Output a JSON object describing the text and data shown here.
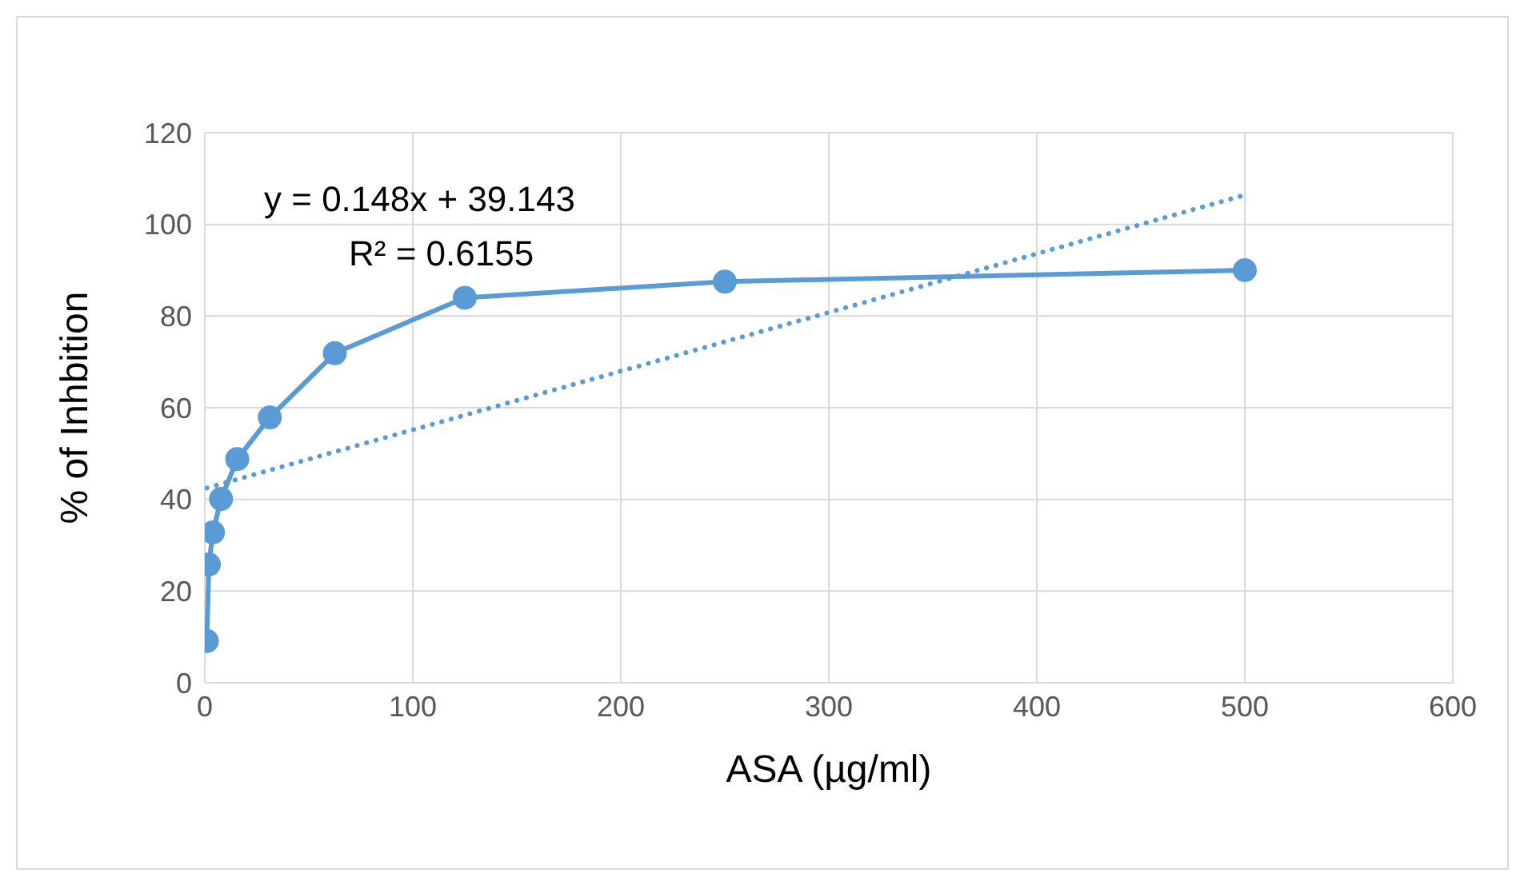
{
  "chart_data": {
    "type": "line",
    "xlabel": "ASA (µg/ml)",
    "ylabel": "% of Inhbition",
    "annotations": [
      "y = 0.148x + 39.143",
      "R² = 0.6155"
    ],
    "x": [
      0.98,
      1.95,
      3.9,
      7.8,
      15.6,
      31.25,
      62.5,
      125,
      250,
      500
    ],
    "series": [
      {
        "color": "#5b9bd5",
        "values": [
          9.1,
          25.8,
          32.8,
          40.1,
          48.8,
          57.9,
          71.9,
          84,
          87.5,
          90
        ],
        "marker": "circle",
        "line_style": "solid"
      },
      {
        "type": "line",
        "color": "#5b9bd5",
        "x": [
          0.98,
          500
        ],
        "values": [
          42.5,
          106.4
        ],
        "marker": "none",
        "line_style": "dotted"
      }
    ],
    "xlim": [
      0,
      600
    ],
    "xticks": [
      0,
      100,
      200,
      300,
      400,
      500,
      600
    ],
    "ylim": [
      0,
      120
    ],
    "yticks": [
      0,
      20,
      40,
      60,
      80,
      100,
      120
    ],
    "grid": true
  }
}
